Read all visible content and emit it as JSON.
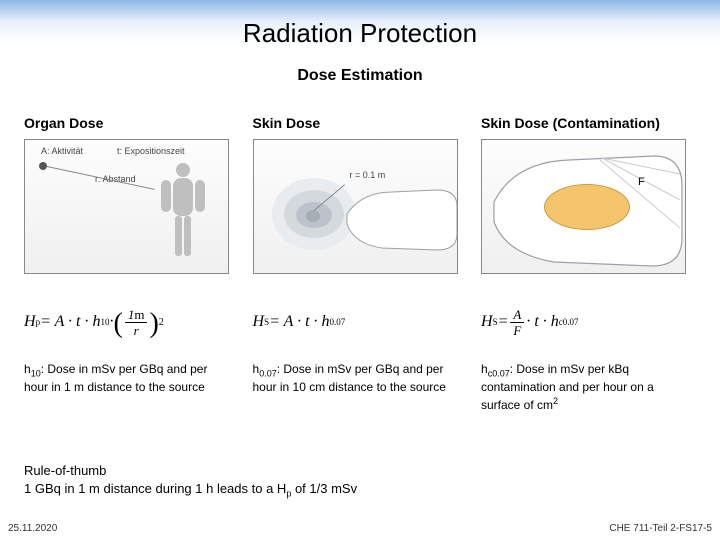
{
  "title": "Radiation Protection",
  "subtitle": "Dose Estimation",
  "columns": {
    "organ": {
      "header": "Organ Dose",
      "formula_html": "H<sub>p</sub> = A · t · h<sub>10</sub> · <span class='paren-big'>(</span><span class='frac'><span class='num'>1<span class='rm'>m</span></span><span class='den'>r</span></span><span class='paren-big'>)</span><span class='sup2'>2</span>",
      "desc_html": "h<sub>10</sub>: Dose in mSv per GBq and per hour in 1 m distance to the source",
      "diagram": {
        "labels": {
          "activity": "A: Aktivität",
          "exptime": "t: Expositionszeit",
          "distance": "r: Abstand"
        },
        "colors": {
          "body_fill": "#bfbfbf",
          "text": "#555555",
          "point": "#555555"
        }
      }
    },
    "skin": {
      "header": "Skin Dose",
      "formula_html": "H<sub>S</sub> = A · t · h<sub>0.07</sub>",
      "desc_html": "h<sub>0.07</sub>: Dose in mSv per GBq and per hour in 10 cm distance to the source",
      "diagram": {
        "radius_label": "r = 0.1 m",
        "cloud_colors": [
          "#e9ecef",
          "#d4d9de",
          "#bcc2c9",
          "#a6adb5"
        ],
        "hand_outline": "#9aa0a6"
      }
    },
    "contam": {
      "header": "Skin Dose (Contamination)",
      "formula_html": "H<sub>S</sub> = <span class='frac'><span class='num'>A</span><span class='den'>F</span></span> · t · h<sub>c0.07</sub>",
      "desc_html": "h<sub>c0.07</sub>: Dose in mSv per kBq contamination and per hour on a surface of cm<sup>2</sup>",
      "diagram": {
        "area_label": "F",
        "blob_fill": "#f4c56b",
        "blob_stroke": "#c99a3e",
        "hand_outline": "#9aa0a6"
      }
    }
  },
  "rule": {
    "heading": "Rule-of-thumb",
    "text_html": "1 GBq in 1 m distance during 1 h leads to a H<sub>p</sub> of 1/3 mSv"
  },
  "footer": {
    "left": "25.11.2020",
    "right": "CHE 711-Teil 2-FS17-5"
  }
}
